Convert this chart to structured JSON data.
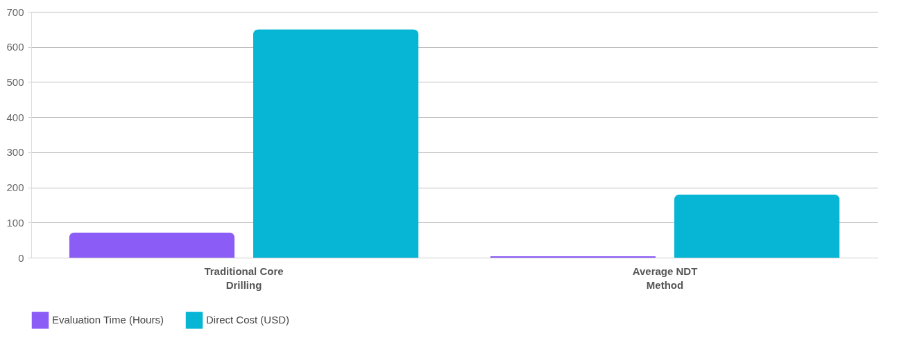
{
  "chart_data": {
    "type": "bar",
    "categories": [
      "Traditional Core Drilling",
      "Average NDT Method"
    ],
    "series": [
      {
        "name": "Evaluation Time (Hours)",
        "color": "#8b5cf6",
        "values": [
          72,
          4
        ]
      },
      {
        "name": "Direct Cost (USD)",
        "color": "#06b6d4",
        "values": [
          650,
          180
        ]
      }
    ],
    "ylim": [
      0,
      700
    ],
    "yticks": [
      0,
      100,
      200,
      300,
      400,
      500,
      600,
      700
    ],
    "grid": "y",
    "legend": "bottom"
  }
}
